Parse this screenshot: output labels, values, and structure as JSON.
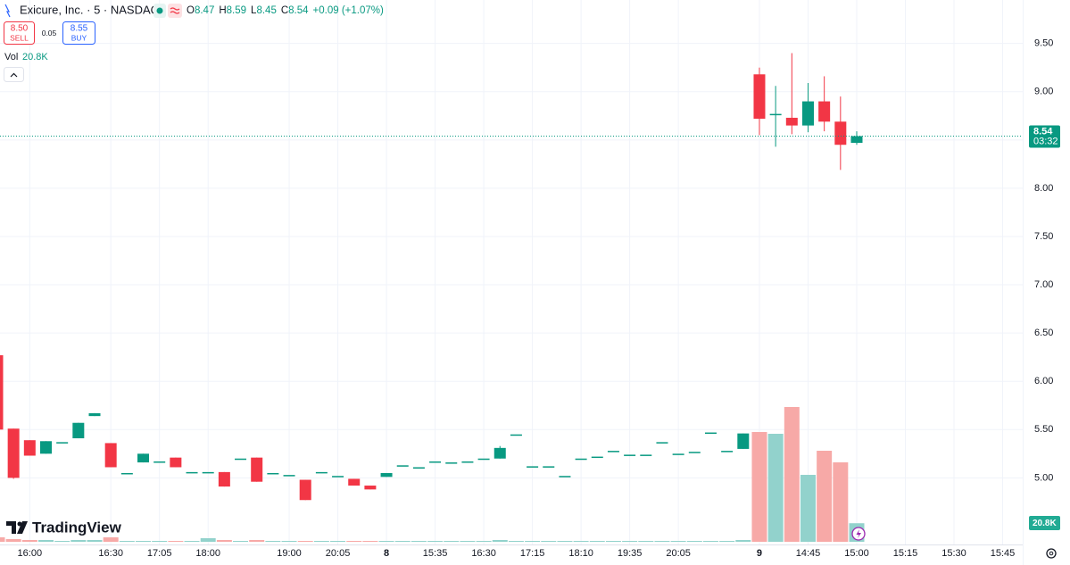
{
  "header": {
    "title": "Exicure, Inc. · 5 · NASDAQ",
    "ohlc": [
      {
        "label": "O",
        "value": "8.47"
      },
      {
        "label": "H",
        "value": "8.59"
      },
      {
        "label": "L",
        "value": "8.45"
      },
      {
        "label": "C",
        "value": "8.54"
      }
    ],
    "change": "+0.09 (+1.07%)",
    "sell": {
      "price": "8.50",
      "label": "SELL"
    },
    "spread": "0.05",
    "buy": {
      "price": "8.55",
      "label": "BUY"
    },
    "volume_label": "Vol",
    "volume_value": "20.8K",
    "watermark": "TradingView"
  },
  "chart_data": {
    "type": "candlestick",
    "categories": [
      null,
      null,
      "16:00",
      null,
      null,
      null,
      null,
      "16:30",
      null,
      null,
      "17:05",
      null,
      null,
      "18:00",
      null,
      null,
      null,
      null,
      "19:00",
      null,
      null,
      "20:05",
      null,
      null,
      "8",
      null,
      null,
      "15:35",
      null,
      null,
      "16:30",
      null,
      null,
      "17:15",
      null,
      null,
      "18:10",
      null,
      null,
      "19:35",
      null,
      null,
      "20:05",
      null,
      null,
      null,
      null,
      "9",
      null,
      null,
      "14:45",
      null,
      null,
      "15:00",
      null,
      null,
      "15:15",
      null,
      null,
      "15:30",
      null,
      null,
      "15:45"
    ],
    "open": [
      6.27,
      5.51,
      5.39,
      5.25,
      5.37,
      5.41,
      5.64,
      5.36,
      5.05,
      5.16,
      5.17,
      5.21,
      5.06,
      5.06,
      5.06,
      5.2,
      5.21,
      5.05,
      5.03,
      4.98,
      5.06,
      5.02,
      4.99,
      4.92,
      5.01,
      5.13,
      5.11,
      5.17,
      5.16,
      5.17,
      5.2,
      5.2,
      5.45,
      5.12,
      5.12,
      5.02,
      5.2,
      5.22,
      5.28,
      5.24,
      5.24,
      5.37,
      5.25,
      5.27,
      5.47,
      5.28,
      5.3,
      9.18,
      8.76,
      8.73,
      8.65,
      8.9,
      8.69,
      8.47,
      null,
      null,
      null,
      null,
      null,
      null,
      null,
      null,
      null
    ],
    "high": [
      6.27,
      5.51,
      5.39,
      5.38,
      5.37,
      5.57,
      5.67,
      5.36,
      5.05,
      5.25,
      5.17,
      5.21,
      5.06,
      5.06,
      5.06,
      5.2,
      5.21,
      5.05,
      5.03,
      4.98,
      5.06,
      5.02,
      4.99,
      4.92,
      5.05,
      5.13,
      5.11,
      5.17,
      5.16,
      5.17,
      5.2,
      5.33,
      5.45,
      5.12,
      5.12,
      5.02,
      5.2,
      5.22,
      5.28,
      5.24,
      5.24,
      5.37,
      5.25,
      5.27,
      5.47,
      5.28,
      5.46,
      9.25,
      9.06,
      9.4,
      9.09,
      9.16,
      8.95,
      8.59,
      null,
      null,
      null,
      null,
      null,
      null,
      null,
      null,
      null
    ],
    "low": [
      5.5,
      4.99,
      5.23,
      5.25,
      5.37,
      5.41,
      5.64,
      5.11,
      5.05,
      5.16,
      5.17,
      5.11,
      5.06,
      5.06,
      4.91,
      5.2,
      4.96,
      5.05,
      5.03,
      4.77,
      5.06,
      5.02,
      4.92,
      4.88,
      5.01,
      5.13,
      5.11,
      5.17,
      5.16,
      5.17,
      5.2,
      5.2,
      5.45,
      5.12,
      5.12,
      5.02,
      5.2,
      5.22,
      5.28,
      5.24,
      5.24,
      5.37,
      5.25,
      5.27,
      5.47,
      5.28,
      5.3,
      8.55,
      8.43,
      8.56,
      8.58,
      8.59,
      8.19,
      8.45,
      null,
      null,
      null,
      null,
      null,
      null,
      null,
      null,
      null
    ],
    "close": [
      5.5,
      5.0,
      5.23,
      5.38,
      5.37,
      5.57,
      5.67,
      5.11,
      5.05,
      5.25,
      5.17,
      5.11,
      5.06,
      5.06,
      4.91,
      5.2,
      4.96,
      5.05,
      5.03,
      4.77,
      5.06,
      5.02,
      4.92,
      4.88,
      5.05,
      5.13,
      5.11,
      5.17,
      5.16,
      5.17,
      5.2,
      5.31,
      5.45,
      5.12,
      5.12,
      5.02,
      5.2,
      5.22,
      5.28,
      5.24,
      5.24,
      5.37,
      5.25,
      5.27,
      5.47,
      5.28,
      5.46,
      8.72,
      8.77,
      8.65,
      8.9,
      8.69,
      8.45,
      8.54,
      null,
      null,
      null,
      null,
      null,
      null,
      null,
      null,
      null
    ],
    "up_color": "#089981",
    "down_color": "#f23645",
    "ylim": [
      4.31,
      9.95
    ],
    "yticks": [
      {
        "value": 5,
        "label": "5.00"
      },
      {
        "value": 5.5,
        "label": "5.50"
      },
      {
        "value": 6,
        "label": "6.00"
      },
      {
        "value": 6.5,
        "label": "6.50"
      },
      {
        "value": 7,
        "label": "7.00"
      },
      {
        "value": 7.5,
        "label": "7.50"
      },
      {
        "value": 8,
        "label": "8.00"
      },
      {
        "value": 8.5,
        "label": "8.50"
      },
      {
        "value": 9,
        "label": "9.00"
      },
      {
        "value": 9.5,
        "label": "9.50"
      }
    ],
    "grid": true,
    "last_price": 8.54,
    "countdown": "03:32",
    "volume": {
      "values": [
        5000,
        3000,
        2000,
        2000,
        1000,
        2000,
        2000,
        5000,
        1000,
        1000,
        1000,
        1000,
        1000,
        4000,
        2000,
        1000,
        2000,
        1000,
        1000,
        1000,
        1000,
        1000,
        1000,
        1000,
        1000,
        1000,
        1000,
        1000,
        1000,
        1000,
        1000,
        2000,
        1000,
        1000,
        1000,
        1000,
        1000,
        1000,
        1000,
        1000,
        1000,
        1000,
        1000,
        1000,
        1000,
        1000,
        2000,
        123000,
        121000,
        151000,
        75000,
        102000,
        89000,
        20800,
        null,
        null,
        null,
        null,
        null,
        null,
        null,
        null,
        null
      ],
      "ylim": [
        0,
        600000
      ],
      "last_label": "20.8K",
      "up_color": "#92d2cc",
      "down_color": "#f7a9a7"
    }
  }
}
